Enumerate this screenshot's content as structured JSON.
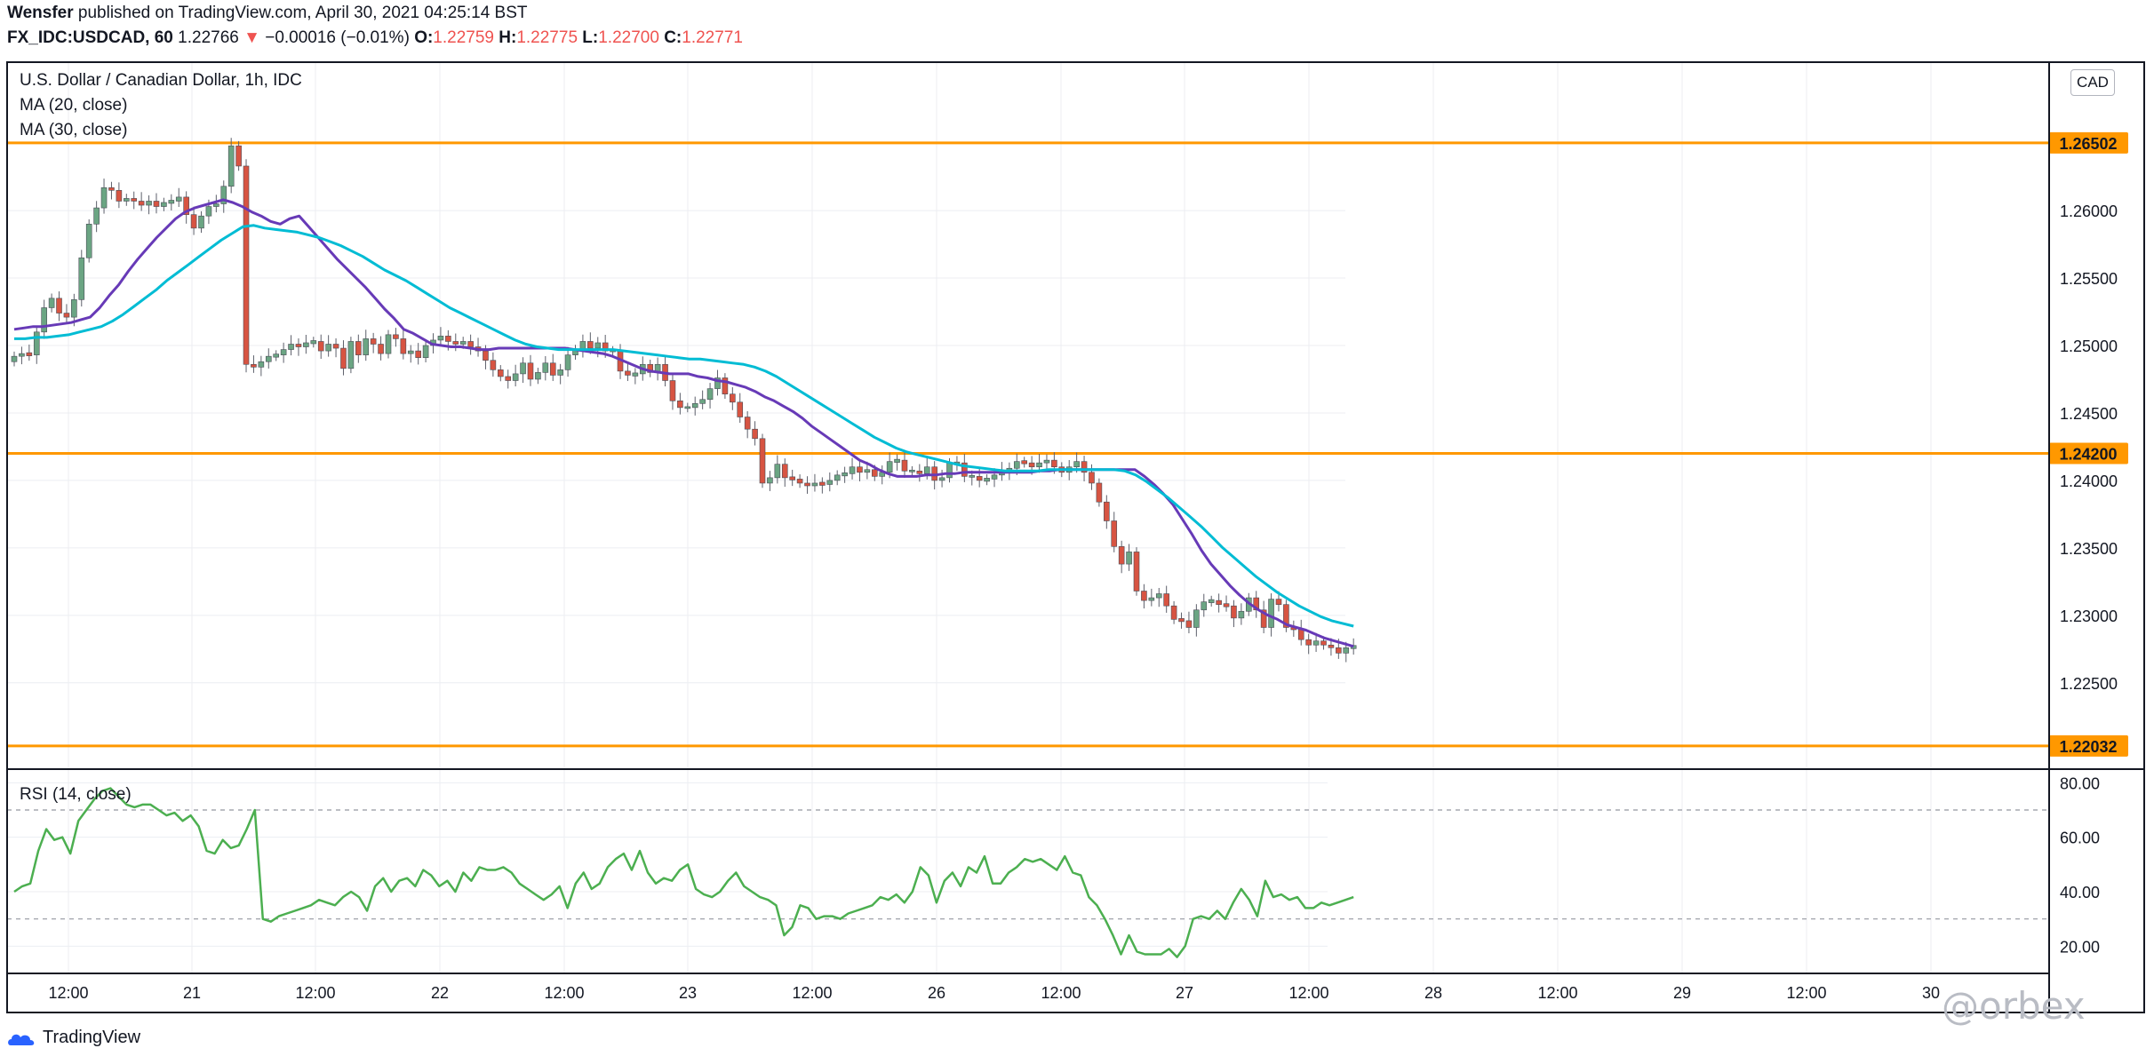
{
  "header": {
    "publisher": "Wensfer",
    "published_text": " published on TradingView.com, April 30, 2021 04:25:14 BST",
    "symbol": "FX_IDC:USDCAD, 60",
    "last": "1.22766",
    "arrow": "▼",
    "change": "−0.00016 (−0.01%)",
    "o_label": "O:",
    "o_value": "1.22759",
    "h_label": "H:",
    "h_value": "1.22775",
    "l_label": "L:",
    "l_value": "1.22700",
    "c_label": "C:",
    "c_value": "1.22771"
  },
  "legend": {
    "title": "U.S. Dollar / Canadian Dollar, 1h, IDC",
    "ma20": "MA (20, close)",
    "ma30": "MA (30, close)",
    "rsi": "RSI (14, close)"
  },
  "currency_badge": "CAD",
  "watermark": "@orbex",
  "footer": {
    "logo": "TradingView"
  },
  "colors": {
    "up": "#6ba583",
    "down": "#d75442",
    "ma20": "#673ab7",
    "ma30": "#00bcd4",
    "hline": "#ff9800",
    "rsi": "#4caf50"
  },
  "chart_data": [
    {
      "type": "candlestick",
      "title": "U.S. Dollar / Canadian Dollar, 1h, IDC",
      "ylim": [
        1.2186,
        1.271
      ],
      "y_ticks": [
        "1.22500",
        "1.23000",
        "1.23500",
        "1.24000",
        "1.24500",
        "1.25000",
        "1.25500",
        "1.26000"
      ],
      "x_ticks": [
        "12:00",
        "21",
        "12:00",
        "22",
        "12:00",
        "23",
        "12:00",
        "26",
        "12:00",
        "27",
        "12:00",
        "28",
        "12:00",
        "29",
        "12:00",
        "30"
      ],
      "horizontal_levels": [
        "1.26502",
        "1.24200",
        "1.22032"
      ],
      "close": [
        1.2492,
        1.2494,
        1.2493,
        1.251,
        1.2528,
        1.2535,
        1.2524,
        1.2521,
        1.2534,
        1.2565,
        1.259,
        1.2602,
        1.2617,
        1.2615,
        1.2607,
        1.2609,
        1.2607,
        1.2604,
        1.2607,
        1.2603,
        1.2606,
        1.2607,
        1.261,
        1.2597,
        1.2587,
        1.2596,
        1.2603,
        1.2605,
        1.2618,
        1.2648,
        1.2633,
        1.2486,
        1.2484,
        1.2488,
        1.2492,
        1.2493,
        1.2497,
        1.2501,
        1.2499,
        1.2502,
        1.2503,
        1.2496,
        1.2501,
        1.2498,
        1.2483,
        1.2503,
        1.2493,
        1.2505,
        1.2501,
        1.2494,
        1.2508,
        1.2505,
        1.2494,
        1.2496,
        1.2491,
        1.25,
        1.2504,
        1.2507,
        1.2503,
        1.2501,
        1.2503,
        1.2499,
        1.2496,
        1.2489,
        1.2482,
        1.2477,
        1.2474,
        1.2479,
        1.2487,
        1.2475,
        1.248,
        1.2487,
        1.2478,
        1.2482,
        1.2493,
        1.2497,
        1.2503,
        1.2498,
        1.2502,
        1.2496,
        1.2496,
        1.2481,
        1.2478,
        1.2479,
        1.2486,
        1.248,
        1.2486,
        1.2474,
        1.2459,
        1.2454,
        1.2454,
        1.2457,
        1.246,
        1.2468,
        1.2476,
        1.2464,
        1.2458,
        1.2447,
        1.2438,
        1.2431,
        1.2398,
        1.2402,
        1.2412,
        1.2402,
        1.2401,
        1.2398,
        1.2396,
        1.2398,
        1.2397,
        1.24,
        1.2404,
        1.2405,
        1.241,
        1.2406,
        1.2408,
        1.2403,
        1.2406,
        1.2414,
        1.2415,
        1.2407,
        1.2407,
        1.2405,
        1.241,
        1.24,
        1.2402,
        1.2413,
        1.2413,
        1.2403,
        1.2403,
        1.24,
        1.2401,
        1.2404,
        1.2407,
        1.2409,
        1.2414,
        1.2413,
        1.241,
        1.2413,
        1.2415,
        1.241,
        1.2406,
        1.241,
        1.2414,
        1.2406,
        1.2398,
        1.2384,
        1.237,
        1.2351,
        1.2338,
        1.2347,
        1.2318,
        1.2311,
        1.2313,
        1.2316,
        1.2307,
        1.2297,
        1.2296,
        1.2291,
        1.2304,
        1.231,
        1.2311,
        1.2308,
        1.2307,
        1.2298,
        1.2303,
        1.2313,
        1.2304,
        1.2291,
        1.2312,
        1.2308,
        1.2291,
        1.229,
        1.2282,
        1.2278,
        1.2281,
        1.2278,
        1.2276,
        1.2272,
        1.2276,
        1.2277
      ],
      "series": [
        {
          "name": "MA (20, close)",
          "values": [
            1.2512,
            1.2513,
            1.2514,
            1.2514,
            1.2515,
            1.2516,
            1.2517,
            1.2519,
            1.2521,
            1.2528,
            1.2537,
            1.2545,
            1.2555,
            1.2564,
            1.2572,
            1.258,
            1.2587,
            1.2594,
            1.2599,
            1.2602,
            1.2604,
            1.2606,
            1.2608,
            1.2606,
            1.2603,
            1.2599,
            1.2596,
            1.2592,
            1.259,
            1.2594,
            1.2596,
            1.2588,
            1.258,
            1.2572,
            1.2564,
            1.2557,
            1.255,
            1.2543,
            1.2535,
            1.2527,
            1.252,
            1.2512,
            1.2509,
            1.2505,
            1.2501,
            1.25,
            1.2499,
            1.2499,
            1.2498,
            1.2497,
            1.2497,
            1.2498,
            1.2498,
            1.2498,
            1.2498,
            1.2498,
            1.2498,
            1.2498,
            1.2498,
            1.2497,
            1.2496,
            1.2495,
            1.2494,
            1.2492,
            1.2489,
            1.2486,
            1.2483,
            1.2481,
            1.248,
            1.2479,
            1.2479,
            1.2479,
            1.2477,
            1.2476,
            1.2474,
            1.2473,
            1.2471,
            1.2469,
            1.2466,
            1.2462,
            1.2459,
            1.2455,
            1.2451,
            1.2446,
            1.244,
            1.2435,
            1.243,
            1.2425,
            1.242,
            1.2415,
            1.2412,
            1.2408,
            1.2405,
            1.2403,
            1.2403,
            1.2403,
            1.2404,
            1.2404,
            1.2405,
            1.2405,
            1.2406,
            1.2406,
            1.2406,
            1.2406,
            1.2406,
            1.2406,
            1.2406,
            1.2406,
            1.2407,
            1.2407,
            1.2408,
            1.2408,
            1.2408,
            1.2408,
            1.2408,
            1.2408,
            1.2408,
            1.2408,
            1.2408,
            1.2403,
            1.2397,
            1.239,
            1.2382,
            1.2371,
            1.236,
            1.2348,
            1.2338,
            1.233,
            1.2322,
            1.2315,
            1.2309,
            1.2304,
            1.23,
            1.2297,
            1.2293,
            1.2291,
            1.2289,
            1.2286,
            1.2283,
            1.2281,
            1.2279,
            1.2277
          ]
        },
        {
          "name": "MA (30, close)",
          "values": [
            1.2505,
            1.2505,
            1.2506,
            1.2506,
            1.2507,
            1.2508,
            1.251,
            1.2512,
            1.2514,
            1.2518,
            1.2523,
            1.2529,
            1.2535,
            1.2541,
            1.2548,
            1.2554,
            1.256,
            1.2566,
            1.2572,
            1.2578,
            1.2583,
            1.2588,
            1.2589,
            1.2587,
            1.2586,
            1.2585,
            1.2584,
            1.2582,
            1.258,
            1.2577,
            1.2574,
            1.257,
            1.2566,
            1.2561,
            1.2556,
            1.2552,
            1.2548,
            1.2543,
            1.2538,
            1.2533,
            1.2528,
            1.2524,
            1.252,
            1.2516,
            1.2512,
            1.2508,
            1.2504,
            1.2501,
            1.2499,
            1.2498,
            1.2497,
            1.2497,
            1.2497,
            1.2497,
            1.2497,
            1.2497,
            1.2496,
            1.2495,
            1.2494,
            1.2493,
            1.2492,
            1.2491,
            1.249,
            1.249,
            1.2489,
            1.2488,
            1.2487,
            1.2486,
            1.2484,
            1.2481,
            1.2477,
            1.2472,
            1.2467,
            1.2462,
            1.2457,
            1.2452,
            1.2447,
            1.2442,
            1.2437,
            1.2432,
            1.2428,
            1.2424,
            1.2421,
            1.2419,
            1.2417,
            1.2415,
            1.2413,
            1.2411,
            1.241,
            1.2409,
            1.2408,
            1.2407,
            1.2407,
            1.2407,
            1.2407,
            1.2408,
            1.2408,
            1.2408,
            1.2408,
            1.2408,
            1.2408,
            1.2408,
            1.2407,
            1.2404,
            1.2399,
            1.2393,
            1.2387,
            1.238,
            1.2373,
            1.2366,
            1.2358,
            1.235,
            1.2343,
            1.2336,
            1.2329,
            1.2323,
            1.2317,
            1.2312,
            1.2307,
            1.2303,
            1.2299,
            1.2296,
            1.2294,
            1.2292
          ]
        }
      ]
    },
    {
      "type": "line",
      "title": "RSI (14, close)",
      "ylim": [
        10,
        85
      ],
      "y_ticks": [
        "20.00",
        "40.00",
        "60.00",
        "80.00"
      ],
      "levels": [
        70,
        30
      ],
      "series": [
        {
          "name": "RSI (14, close)",
          "values": [
            40,
            42,
            43,
            55,
            63,
            59,
            60,
            54,
            66,
            70,
            74,
            77,
            78,
            75,
            72,
            71,
            72,
            72,
            70,
            68,
            69,
            66,
            68,
            64,
            55,
            54,
            59,
            56,
            57,
            63,
            70,
            30,
            29,
            31,
            32,
            33,
            34,
            35,
            37,
            36,
            35,
            38,
            40,
            38,
            33,
            42,
            45,
            40,
            44,
            45,
            42,
            48,
            46,
            42,
            44,
            40,
            47,
            44,
            49,
            48,
            48,
            49,
            47,
            43,
            41,
            39,
            37,
            39,
            42,
            34,
            43,
            47,
            41,
            43,
            49,
            52,
            54,
            48,
            55,
            47,
            43,
            45,
            44,
            48,
            50,
            41,
            39,
            38,
            40,
            44,
            47,
            42,
            40,
            38,
            37,
            35,
            24,
            27,
            35,
            34,
            30,
            31,
            31,
            30,
            32,
            33,
            34,
            35,
            38,
            37,
            39,
            36,
            40,
            49,
            46,
            36,
            44,
            47,
            42,
            49,
            47,
            53,
            43,
            43,
            47,
            49,
            52,
            51,
            52,
            50,
            48,
            53,
            47,
            46,
            38,
            35,
            30,
            24,
            17,
            24,
            18,
            17,
            17,
            17,
            19,
            16,
            20,
            30,
            31,
            30,
            33,
            30,
            36,
            41,
            37,
            31,
            44,
            38,
            39,
            37,
            38,
            34,
            34,
            36,
            35,
            36,
            37,
            38
          ]
        }
      ]
    }
  ]
}
